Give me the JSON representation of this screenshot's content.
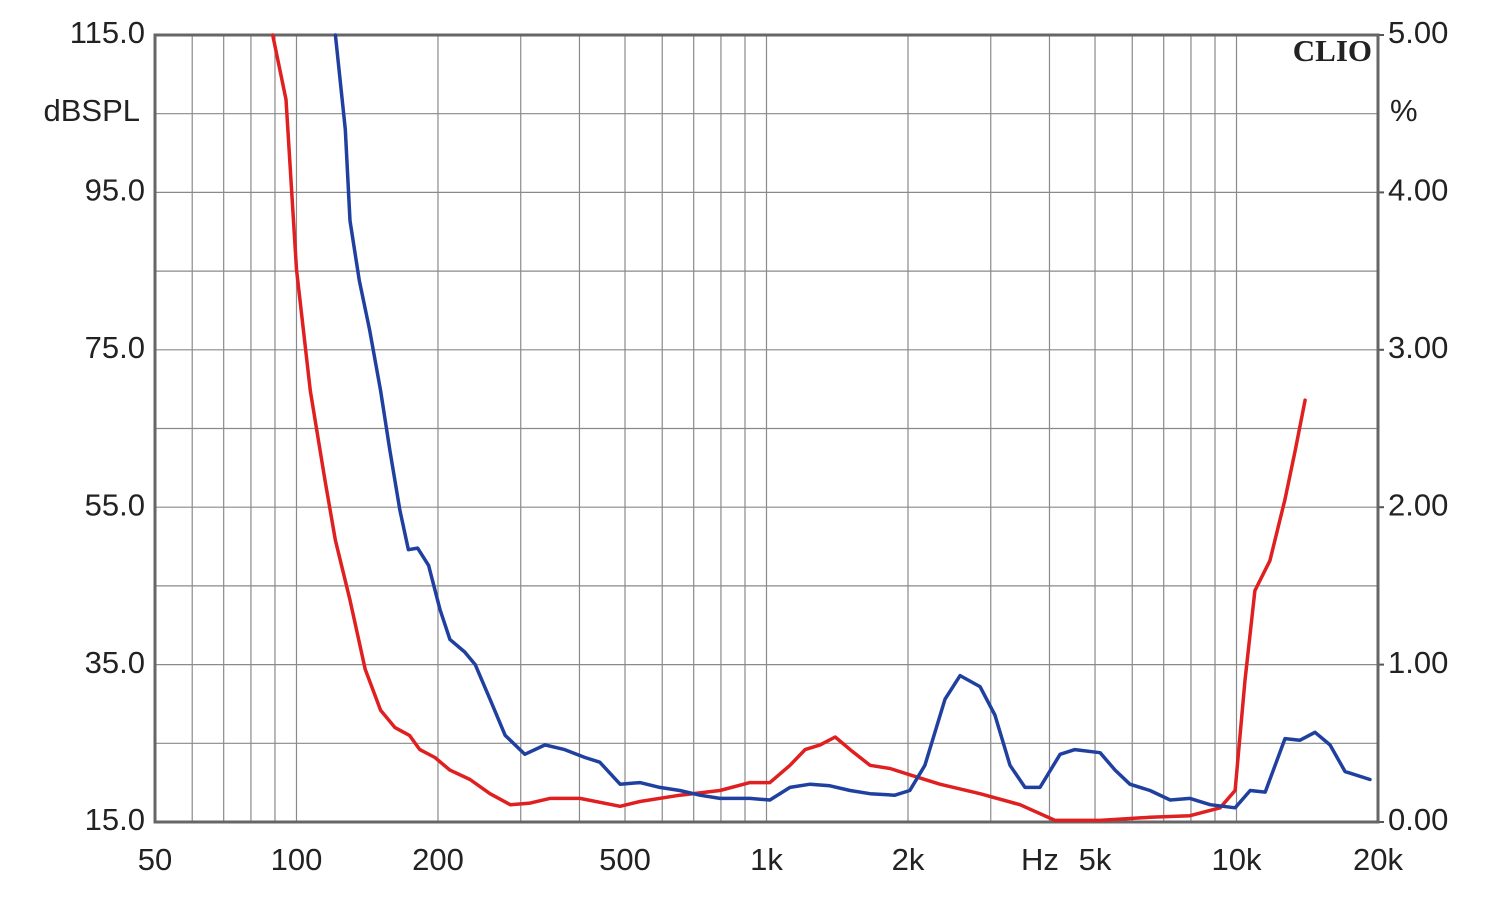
{
  "chart_data": {
    "type": "line",
    "watermark": "CLIO",
    "x_label": "Hz",
    "y_label": "dBSPL",
    "y2_label": "%",
    "xlog": true,
    "grid": true,
    "xlim": [
      50,
      20000
    ],
    "xticks": [
      50,
      100,
      200,
      500,
      {
        "value": 1000,
        "label": "1k"
      },
      {
        "value": 2000,
        "label": "2k"
      },
      {
        "value": 5000,
        "label": "5k"
      },
      {
        "value": 10000,
        "label": "10k"
      },
      {
        "value": 20000,
        "label": "20k"
      }
    ],
    "x_minor_ticks": [
      60,
      70,
      80,
      90,
      300,
      400,
      600,
      700,
      800,
      900,
      3000,
      4000,
      6000,
      7000,
      8000,
      9000
    ],
    "ylim": [
      15,
      115
    ],
    "yticks": [
      {
        "value": 15,
        "label": "15.0"
      },
      {
        "value": 35,
        "label": "35.0"
      },
      {
        "value": 55,
        "label": "55.0"
      },
      {
        "value": 75,
        "label": "75.0"
      },
      {
        "value": 95,
        "label": "95.0"
      },
      {
        "value": 115,
        "label": "115.0"
      }
    ],
    "y_minor_ticks": [
      25,
      45,
      65,
      85,
      105
    ],
    "y2lim": [
      0,
      5
    ],
    "y2ticks": [
      {
        "value": 0,
        "label": "0.00"
      },
      {
        "value": 1,
        "label": "1.00"
      },
      {
        "value": 2,
        "label": "2.00"
      },
      {
        "value": 3,
        "label": "3.00"
      },
      {
        "value": 4,
        "label": "4.00"
      },
      {
        "value": 5,
        "label": "5.00"
      }
    ],
    "series": [
      {
        "color": "#e02020",
        "axis": "y2",
        "x": [
          89,
          95,
          100,
          107,
          115,
          121,
          130,
          140,
          151,
          162,
          174,
          183,
          197,
          212,
          234,
          258,
          285,
          314,
          346,
          401,
          488,
          538,
          654,
          796,
          922,
          1017,
          1122,
          1208,
          1300,
          1400,
          1506,
          1660,
          1832,
          2018,
          2339,
          2846,
          3462,
          4110,
          5126,
          6545,
          7962,
          9226,
          9931,
          10425,
          10940,
          11776,
          12679,
          13330,
          13996
        ],
        "values": [
          5.0,
          4.59,
          3.51,
          2.74,
          2.17,
          1.79,
          1.41,
          0.97,
          0.71,
          0.6,
          0.55,
          0.46,
          0.41,
          0.33,
          0.27,
          0.18,
          0.11,
          0.12,
          0.15,
          0.15,
          0.1,
          0.13,
          0.17,
          0.2,
          0.25,
          0.25,
          0.36,
          0.46,
          0.49,
          0.54,
          0.46,
          0.36,
          0.34,
          0.3,
          0.24,
          0.18,
          0.11,
          0.01,
          0.01,
          0.03,
          0.04,
          0.09,
          0.2,
          0.9,
          1.47,
          1.66,
          2.05,
          2.36,
          2.68
        ]
      },
      {
        "color": "#2040a0",
        "axis": "y2",
        "x": [
          121,
          127,
          130,
          136,
          143,
          151,
          158,
          166,
          173,
          181,
          191,
          202,
          212,
          228,
          240,
          258,
          278,
          306,
          338,
          372,
          411,
          442,
          488,
          538,
          593,
          654,
          722,
          796,
          922,
          1017,
          1122,
          1238,
          1364,
          1506,
          1660,
          1875,
          2018,
          2173,
          2398,
          2582,
          2846,
          3062,
          3296,
          3548,
          3819,
          4214,
          4531,
          5126,
          5518,
          5932,
          6545,
          7227,
          7962,
          8790,
          9931,
          10691,
          11507,
          12679,
          13650,
          14690,
          15811,
          17020,
          19230
        ],
        "values": [
          5.0,
          4.4,
          3.82,
          3.44,
          3.13,
          2.74,
          2.36,
          1.98,
          1.73,
          1.74,
          1.63,
          1.35,
          1.16,
          1.08,
          1.0,
          0.78,
          0.55,
          0.43,
          0.49,
          0.46,
          0.41,
          0.38,
          0.24,
          0.25,
          0.22,
          0.2,
          0.17,
          0.15,
          0.15,
          0.14,
          0.22,
          0.24,
          0.23,
          0.2,
          0.18,
          0.17,
          0.2,
          0.36,
          0.78,
          0.93,
          0.86,
          0.68,
          0.36,
          0.22,
          0.22,
          0.43,
          0.46,
          0.44,
          0.33,
          0.24,
          0.2,
          0.14,
          0.15,
          0.11,
          0.09,
          0.2,
          0.19,
          0.53,
          0.52,
          0.57,
          0.49,
          0.32,
          0.27
        ]
      }
    ]
  }
}
